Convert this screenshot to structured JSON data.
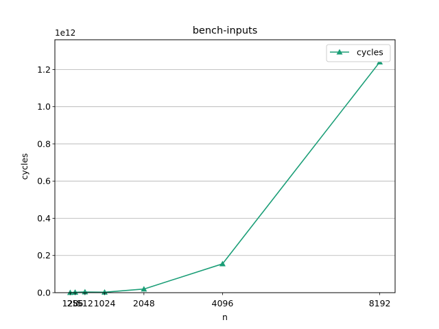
{
  "chart_data": {
    "type": "line",
    "title": "bench-inputs",
    "xlabel": "n",
    "ylabel": "cycles",
    "y_offset_label": "1e12",
    "x": [
      128,
      256,
      512,
      1024,
      2048,
      4096,
      8192
    ],
    "x_tick_labels": [
      "128",
      "256",
      "512",
      "1024",
      "2048",
      "4096",
      "8192"
    ],
    "xlim": [
      -272,
      8592
    ],
    "ylim": [
      0,
      1.36
    ],
    "y_ticks": [
      0.0,
      0.2,
      0.4,
      0.6,
      0.8,
      1.0,
      1.2
    ],
    "y_tick_labels": [
      "0.0",
      "0.2",
      "0.4",
      "0.6",
      "0.8",
      "1.0",
      "1.2"
    ],
    "y_scale": "1e12",
    "grid": "horizontal",
    "legend_position": "upper right",
    "series": [
      {
        "name": "cycles",
        "marker": "triangle",
        "color": "#1b9e77",
        "values": [
          0.0005,
          0.002,
          0.0038,
          0.0025,
          0.0195,
          0.155,
          1.24
        ]
      }
    ]
  }
}
